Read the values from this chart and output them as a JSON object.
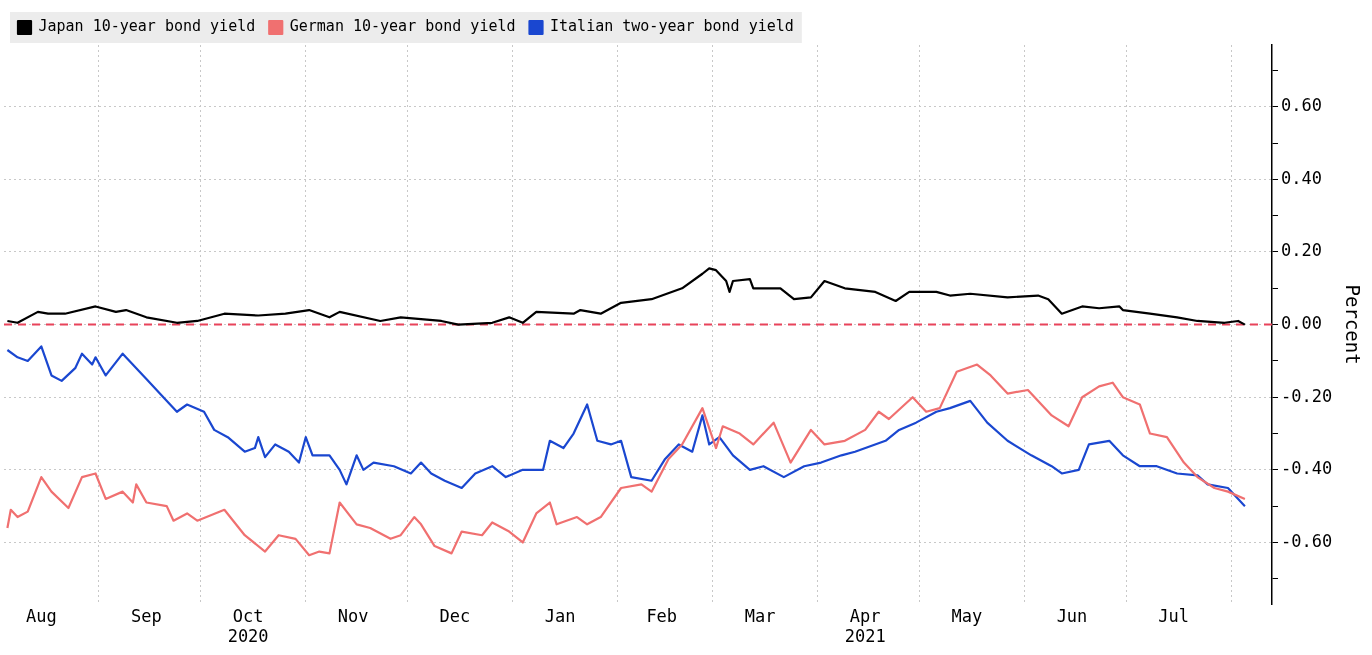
{
  "chart_data": {
    "type": "line",
    "ylabel": "Percent",
    "legend": "top left",
    "grid": true,
    "marker": "none",
    "line_style": "solid",
    "xlim": [
      "2020-08-04",
      "2021-08-13"
    ],
    "xticks": [
      {
        "value": "2020-08-15",
        "label": "Aug"
      },
      {
        "value": "2020-09-01",
        "label": null
      },
      {
        "value": "2020-09-15",
        "label": "Sep"
      },
      {
        "value": "2020-10-01",
        "label": null
      },
      {
        "value": "2020-10-15",
        "label": "Oct\n2020"
      },
      {
        "value": "2020-11-01",
        "label": null
      },
      {
        "value": "2020-11-15",
        "label": "Nov"
      },
      {
        "value": "2020-12-01",
        "label": null
      },
      {
        "value": "2020-12-15",
        "label": "Dec"
      },
      {
        "value": "2021-01-01",
        "label": null
      },
      {
        "value": "2021-01-15",
        "label": "Jan"
      },
      {
        "value": "2021-02-01",
        "label": null
      },
      {
        "value": "2021-02-14",
        "label": "Feb"
      },
      {
        "value": "2021-03-01",
        "label": null
      },
      {
        "value": "2021-03-15",
        "label": "Mar"
      },
      {
        "value": "2021-04-01",
        "label": null
      },
      {
        "value": "2021-04-15",
        "label": "Apr\n2021"
      },
      {
        "value": "2021-05-01",
        "label": null
      },
      {
        "value": "2021-05-15",
        "label": "May"
      },
      {
        "value": "2021-06-01",
        "label": null
      },
      {
        "value": "2021-06-15",
        "label": "Jun"
      },
      {
        "value": "2021-07-01",
        "label": null
      },
      {
        "value": "2021-07-15",
        "label": "Jul"
      },
      {
        "value": "2021-08-01",
        "label": null
      }
    ],
    "ylim": [
      -0.77,
      0.77
    ],
    "yticks": [
      {
        "value": -0.7,
        "label": null
      },
      {
        "value": -0.6,
        "label": "-0.60"
      },
      {
        "value": -0.5,
        "label": null
      },
      {
        "value": -0.4,
        "label": "-0.40"
      },
      {
        "value": -0.3,
        "label": null
      },
      {
        "value": -0.2,
        "label": "-0.20"
      },
      {
        "value": -0.1,
        "label": null
      },
      {
        "value": 0,
        "label": "0.00"
      },
      {
        "value": 0.1,
        "label": null
      },
      {
        "value": 0.2,
        "label": "0.20"
      },
      {
        "value": 0.3,
        "label": null
      },
      {
        "value": 0.4,
        "label": "0.40"
      },
      {
        "value": 0.5,
        "label": null
      },
      {
        "value": 0.6,
        "label": "0.60"
      },
      {
        "value": 0.7,
        "label": null
      }
    ],
    "ref_lines": [
      {
        "axis": "y",
        "value": 0,
        "color": "#e8435a",
        "line_style": "dashed"
      }
    ],
    "series": [
      {
        "name": "Japan 10-year bond yield",
        "color": "#000000",
        "x": [
          "2020-08-05",
          "2020-08-08",
          "2020-08-14",
          "2020-08-17",
          "2020-08-22",
          "2020-08-31",
          "2020-09-06",
          "2020-09-09",
          "2020-09-15",
          "2020-09-24",
          "2020-09-30",
          "2020-10-08",
          "2020-10-18",
          "2020-10-26",
          "2020-11-02",
          "2020-11-08",
          "2020-11-11",
          "2020-11-23",
          "2020-11-29",
          "2020-12-11",
          "2020-12-16",
          "2020-12-26",
          "2020-12-31",
          "2021-01-04",
          "2021-01-08",
          "2021-01-19",
          "2021-01-21",
          "2021-01-27",
          "2021-02-02",
          "2021-02-11",
          "2021-02-20",
          "2021-02-26",
          "2021-02-28",
          "2021-03-02",
          "2021-03-05",
          "2021-03-06",
          "2021-03-07",
          "2021-03-12",
          "2021-03-13",
          "2021-03-21",
          "2021-03-25",
          "2021-03-30",
          "2021-04-03",
          "2021-04-09",
          "2021-04-18",
          "2021-04-24",
          "2021-04-28",
          "2021-05-06",
          "2021-05-10",
          "2021-05-16",
          "2021-05-27",
          "2021-06-05",
          "2021-06-08",
          "2021-06-12",
          "2021-06-18",
          "2021-06-23",
          "2021-06-29",
          "2021-06-30",
          "2021-07-08",
          "2021-07-16",
          "2021-07-22",
          "2021-07-30",
          "2021-08-03",
          "2021-08-05"
        ],
        "values": [
          0.01,
          0.005,
          0.035,
          0.03,
          0.03,
          0.05,
          0.035,
          0.04,
          0.02,
          0.005,
          0.01,
          0.03,
          0.025,
          0.03,
          0.04,
          0.02,
          0.035,
          0.01,
          0.02,
          0.01,
          0.0,
          0.005,
          0.02,
          0.005,
          0.035,
          0.03,
          0.04,
          0.03,
          0.06,
          0.07,
          0.1,
          0.14,
          0.155,
          0.15,
          0.12,
          0.09,
          0.12,
          0.125,
          0.1,
          0.1,
          0.07,
          0.075,
          0.12,
          0.1,
          0.09,
          0.065,
          0.09,
          0.09,
          0.08,
          0.085,
          0.075,
          0.08,
          0.07,
          0.03,
          0.05,
          0.045,
          0.05,
          0.04,
          0.03,
          0.02,
          0.01,
          0.005,
          0.01,
          0.0
        ]
      },
      {
        "name": "German 10-year bond yield",
        "color": "#f07070",
        "x": [
          "2020-08-05",
          "2020-08-06",
          "2020-08-08",
          "2020-08-11",
          "2020-08-15",
          "2020-08-18",
          "2020-08-23",
          "2020-08-27",
          "2020-08-31",
          "2020-09-03",
          "2020-09-08",
          "2020-09-11",
          "2020-09-12",
          "2020-09-15",
          "2020-09-21",
          "2020-09-23",
          "2020-09-27",
          "2020-09-30",
          "2020-10-08",
          "2020-10-14",
          "2020-10-20",
          "2020-10-24",
          "2020-10-29",
          "2020-11-02",
          "2020-11-05",
          "2020-11-08",
          "2020-11-11",
          "2020-11-16",
          "2020-11-20",
          "2020-11-26",
          "2020-11-29",
          "2020-12-03",
          "2020-12-05",
          "2020-12-09",
          "2020-12-14",
          "2020-12-17",
          "2020-12-23",
          "2020-12-26",
          "2020-12-31",
          "2021-01-04",
          "2021-01-08",
          "2021-01-12",
          "2021-01-14",
          "2021-01-20",
          "2021-01-23",
          "2021-01-27",
          "2021-02-02",
          "2021-02-08",
          "2021-02-11",
          "2021-02-16",
          "2021-02-20",
          "2021-02-26",
          "2021-03-02",
          "2021-03-04",
          "2021-03-09",
          "2021-03-13",
          "2021-03-19",
          "2021-03-24",
          "2021-03-30",
          "2021-04-03",
          "2021-04-09",
          "2021-04-15",
          "2021-04-19",
          "2021-04-22",
          "2021-04-29",
          "2021-05-03",
          "2021-05-07",
          "2021-05-12",
          "2021-05-18",
          "2021-05-22",
          "2021-05-27",
          "2021-06-02",
          "2021-06-09",
          "2021-06-14",
          "2021-06-18",
          "2021-06-23",
          "2021-06-27",
          "2021-06-30",
          "2021-07-05",
          "2021-07-08",
          "2021-07-13",
          "2021-07-18",
          "2021-07-22",
          "2021-07-27",
          "2021-07-31",
          "2021-08-05"
        ],
        "values": [
          -0.56,
          -0.51,
          -0.53,
          -0.515,
          -0.42,
          -0.46,
          -0.505,
          -0.42,
          -0.41,
          -0.48,
          -0.46,
          -0.49,
          -0.44,
          -0.49,
          -0.5,
          -0.54,
          -0.52,
          -0.54,
          -0.51,
          -0.58,
          -0.625,
          -0.58,
          -0.59,
          -0.635,
          -0.625,
          -0.63,
          -0.49,
          -0.55,
          -0.56,
          -0.59,
          -0.58,
          -0.53,
          -0.55,
          -0.61,
          -0.63,
          -0.57,
          -0.58,
          -0.545,
          -0.57,
          -0.6,
          -0.52,
          -0.49,
          -0.55,
          -0.53,
          -0.55,
          -0.53,
          -0.45,
          -0.44,
          -0.46,
          -0.37,
          -0.33,
          -0.23,
          -0.34,
          -0.28,
          -0.3,
          -0.33,
          -0.27,
          -0.38,
          -0.29,
          -0.33,
          -0.32,
          -0.29,
          -0.24,
          -0.26,
          -0.2,
          -0.24,
          -0.23,
          -0.13,
          -0.11,
          -0.14,
          -0.19,
          -0.18,
          -0.25,
          -0.28,
          -0.2,
          -0.17,
          -0.16,
          -0.2,
          -0.22,
          -0.3,
          -0.31,
          -0.38,
          -0.42,
          -0.45,
          -0.46,
          -0.48
        ]
      },
      {
        "name": "Italian two-year bond yield",
        "color": "#1a47d0",
        "x": [
          "2020-08-05",
          "2020-08-08",
          "2020-08-11",
          "2020-08-15",
          "2020-08-18",
          "2020-08-21",
          "2020-08-25",
          "2020-08-27",
          "2020-08-30",
          "2020-08-31",
          "2020-09-03",
          "2020-09-08",
          "2020-09-15",
          "2020-09-20",
          "2020-09-24",
          "2020-09-27",
          "2020-10-02",
          "2020-10-05",
          "2020-10-09",
          "2020-10-14",
          "2020-10-17",
          "2020-10-18",
          "2020-10-20",
          "2020-10-23",
          "2020-10-27",
          "2020-10-30",
          "2020-11-01",
          "2020-11-03",
          "2020-11-08",
          "2020-11-11",
          "2020-11-13",
          "2020-11-16",
          "2020-11-18",
          "2020-11-21",
          "2020-11-27",
          "2020-12-02",
          "2020-12-05",
          "2020-12-08",
          "2020-12-12",
          "2020-12-17",
          "2020-12-21",
          "2020-12-26",
          "2020-12-30",
          "2021-01-04",
          "2021-01-10",
          "2021-01-12",
          "2021-01-16",
          "2021-01-19",
          "2021-01-23",
          "2021-01-26",
          "2021-01-30",
          "2021-02-02",
          "2021-02-05",
          "2021-02-11",
          "2021-02-15",
          "2021-02-19",
          "2021-02-23",
          "2021-02-26",
          "2021-02-28",
          "2021-03-03",
          "2021-03-07",
          "2021-03-12",
          "2021-03-16",
          "2021-03-22",
          "2021-03-28",
          "2021-04-02",
          "2021-04-08",
          "2021-04-12",
          "2021-04-21",
          "2021-04-25",
          "2021-04-30",
          "2021-05-06",
          "2021-05-10",
          "2021-05-16",
          "2021-05-21",
          "2021-05-27",
          "2021-06-03",
          "2021-06-09",
          "2021-06-12",
          "2021-06-17",
          "2021-06-20",
          "2021-06-26",
          "2021-06-30",
          "2021-07-05",
          "2021-07-10",
          "2021-07-16",
          "2021-07-22",
          "2021-07-25",
          "2021-07-31",
          "2021-08-05"
        ],
        "values": [
          -0.07,
          -0.09,
          -0.1,
          -0.06,
          -0.14,
          -0.155,
          -0.12,
          -0.08,
          -0.11,
          -0.09,
          -0.14,
          -0.08,
          -0.15,
          -0.2,
          -0.24,
          -0.22,
          -0.24,
          -0.29,
          -0.31,
          -0.35,
          -0.34,
          -0.31,
          -0.365,
          -0.33,
          -0.35,
          -0.38,
          -0.31,
          -0.36,
          -0.36,
          -0.4,
          -0.44,
          -0.36,
          -0.4,
          -0.38,
          -0.39,
          -0.41,
          -0.38,
          -0.41,
          -0.43,
          -0.45,
          -0.41,
          -0.39,
          -0.42,
          -0.4,
          -0.4,
          -0.32,
          -0.34,
          -0.3,
          -0.22,
          -0.32,
          -0.33,
          -0.32,
          -0.42,
          -0.43,
          -0.37,
          -0.33,
          -0.35,
          -0.25,
          -0.33,
          -0.31,
          -0.36,
          -0.4,
          -0.39,
          -0.42,
          -0.39,
          -0.38,
          -0.36,
          -0.35,
          -0.32,
          -0.29,
          -0.27,
          -0.24,
          -0.23,
          -0.21,
          -0.27,
          -0.32,
          -0.36,
          -0.39,
          -0.41,
          -0.4,
          -0.33,
          -0.32,
          -0.36,
          -0.39,
          -0.39,
          -0.41,
          -0.415,
          -0.44,
          -0.45,
          -0.5
        ]
      }
    ]
  }
}
